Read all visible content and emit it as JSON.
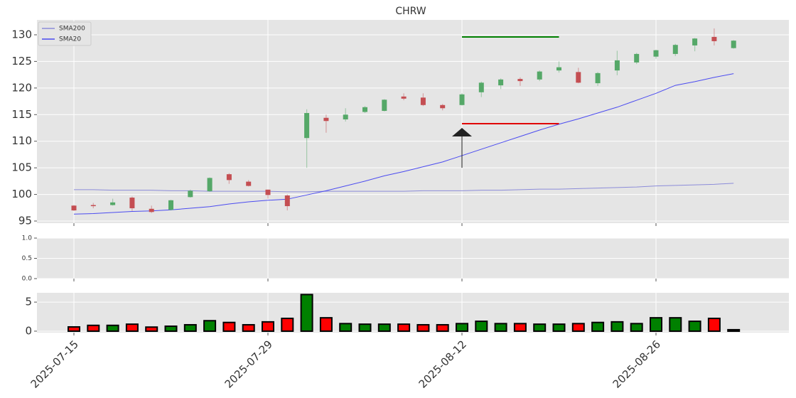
{
  "chart_data": [
    {
      "type": "candlestick",
      "title": "CHRW",
      "open": [
        97.9,
        98.0,
        98.0,
        99.4,
        97.3,
        97.1,
        99.5,
        100.6,
        103.8,
        102.4,
        100.9,
        99.8,
        110.6,
        114.4,
        114.1,
        115.5,
        115.7,
        118.4,
        118.2,
        116.8,
        116.8,
        119.2,
        120.5,
        121.7,
        121.6,
        123.3,
        123.0,
        120.9,
        123.3,
        124.8,
        125.9,
        126.4,
        128.0,
        129.6,
        127.5
      ],
      "high": [
        98.0,
        98.4,
        99.2,
        99.6,
        97.9,
        99.0,
        100.9,
        103.2,
        104.0,
        102.7,
        100.9,
        100.0,
        116.0,
        115.0,
        116.2,
        116.6,
        117.9,
        119.0,
        119.0,
        117.0,
        119.0,
        121.2,
        121.8,
        122.0,
        123.3,
        125.0,
        123.8,
        123.0,
        127.0,
        126.6,
        127.2,
        128.3,
        129.4,
        131.2,
        129.0
      ],
      "low": [
        96.9,
        97.4,
        97.9,
        96.9,
        96.5,
        97.0,
        99.4,
        100.5,
        102.0,
        101.5,
        99.2,
        97.0,
        105.0,
        111.6,
        113.7,
        115.3,
        115.6,
        117.7,
        116.6,
        115.8,
        116.7,
        118.3,
        119.8,
        120.4,
        121.3,
        122.9,
        120.9,
        120.4,
        122.4,
        124.5,
        125.5,
        126.0,
        126.9,
        128.0,
        127.4
      ],
      "close": [
        97.0,
        97.9,
        98.5,
        97.4,
        96.7,
        98.9,
        100.7,
        103.1,
        102.7,
        101.6,
        99.9,
        97.8,
        115.3,
        113.8,
        115.0,
        116.4,
        117.8,
        118.0,
        116.8,
        116.2,
        118.8,
        121.0,
        121.6,
        121.3,
        123.1,
        123.9,
        121.0,
        122.8,
        125.2,
        126.4,
        127.1,
        128.1,
        129.3,
        128.8,
        128.9
      ],
      "up_color": "#55a868",
      "down_color": "#c44e52",
      "series": [
        {
          "name": "SMA200",
          "color": "#8c8cd9",
          "values": [
            100.9,
            100.9,
            100.8,
            100.8,
            100.8,
            100.7,
            100.7,
            100.6,
            100.6,
            100.6,
            100.6,
            100.5,
            100.5,
            100.6,
            100.6,
            100.6,
            100.6,
            100.6,
            100.7,
            100.7,
            100.7,
            100.8,
            100.8,
            100.9,
            101.0,
            101.0,
            101.1,
            101.2,
            101.3,
            101.4,
            101.6,
            101.7,
            101.8,
            101.9,
            102.1
          ]
        },
        {
          "name": "SMA20",
          "color": "#4b4bf0",
          "values": [
            96.3,
            96.4,
            96.6,
            96.8,
            96.9,
            97.1,
            97.4,
            97.7,
            98.2,
            98.6,
            98.9,
            99.1,
            99.9,
            100.7,
            101.6,
            102.5,
            103.5,
            104.3,
            105.2,
            106.1,
            107.3,
            108.5,
            109.7,
            110.9,
            112.1,
            113.2,
            114.2,
            115.3,
            116.4,
            117.7,
            119.0,
            120.5,
            121.2,
            122.0,
            122.7
          ]
        }
      ],
      "levels": [
        {
          "value": 129.6,
          "color": "#008000",
          "x": [
            20,
            25
          ]
        },
        {
          "value": 113.3,
          "color": "#e00000",
          "x": [
            20,
            25
          ]
        }
      ],
      "arrow": {
        "x": 20,
        "y": [
          105.0,
          112.5
        ]
      },
      "ylim": [
        94.6,
        132.8
      ],
      "yticks": [
        95,
        100,
        105,
        110,
        115,
        120,
        125,
        130
      ],
      "grid": true,
      "legend": "upper left"
    },
    {
      "type": "blank",
      "ylim": [
        0,
        1
      ],
      "yticks": [
        {
          "value": 0,
          "label": "0.0"
        },
        {
          "value": 0.5,
          "label": "0.5"
        },
        {
          "value": 1,
          "label": "1.0"
        }
      ],
      "grid": true
    },
    {
      "type": "bar",
      "categories": [
        "2025-07-15",
        null,
        null,
        null,
        null,
        null,
        null,
        null,
        null,
        null,
        "2025-07-29",
        null,
        null,
        null,
        null,
        null,
        null,
        null,
        null,
        null,
        "2025-08-12",
        null,
        null,
        null,
        null,
        null,
        null,
        null,
        null,
        null,
        "2025-08-26",
        null,
        null,
        null,
        null
      ],
      "values": [
        0.73,
        1.0,
        1.0,
        1.2,
        0.7,
        0.85,
        1.1,
        1.8,
        1.5,
        1.1,
        1.6,
        2.2,
        6.3,
        2.3,
        1.3,
        1.2,
        1.2,
        1.2,
        1.1,
        1.1,
        1.3,
        1.7,
        1.3,
        1.3,
        1.2,
        1.2,
        1.3,
        1.5,
        1.6,
        1.3,
        2.3,
        2.3,
        1.7,
        2.2,
        0.25
      ],
      "colors": [
        "#ff0000",
        "#ff0000",
        "#008000",
        "#ff0000",
        "#ff0000",
        "#008000",
        "#008000",
        "#008000",
        "#ff0000",
        "#ff0000",
        "#ff0000",
        "#ff0000",
        "#008000",
        "#ff0000",
        "#008000",
        "#008000",
        "#008000",
        "#ff0000",
        "#ff0000",
        "#ff0000",
        "#008000",
        "#008000",
        "#008000",
        "#ff0000",
        "#008000",
        "#008000",
        "#ff0000",
        "#008000",
        "#008000",
        "#008000",
        "#008000",
        "#008000",
        "#008000",
        "#ff0000",
        "#000000"
      ],
      "ylim": [
        -0.25,
        6.6
      ],
      "yticks": [
        0,
        5
      ],
      "grid": true
    }
  ]
}
